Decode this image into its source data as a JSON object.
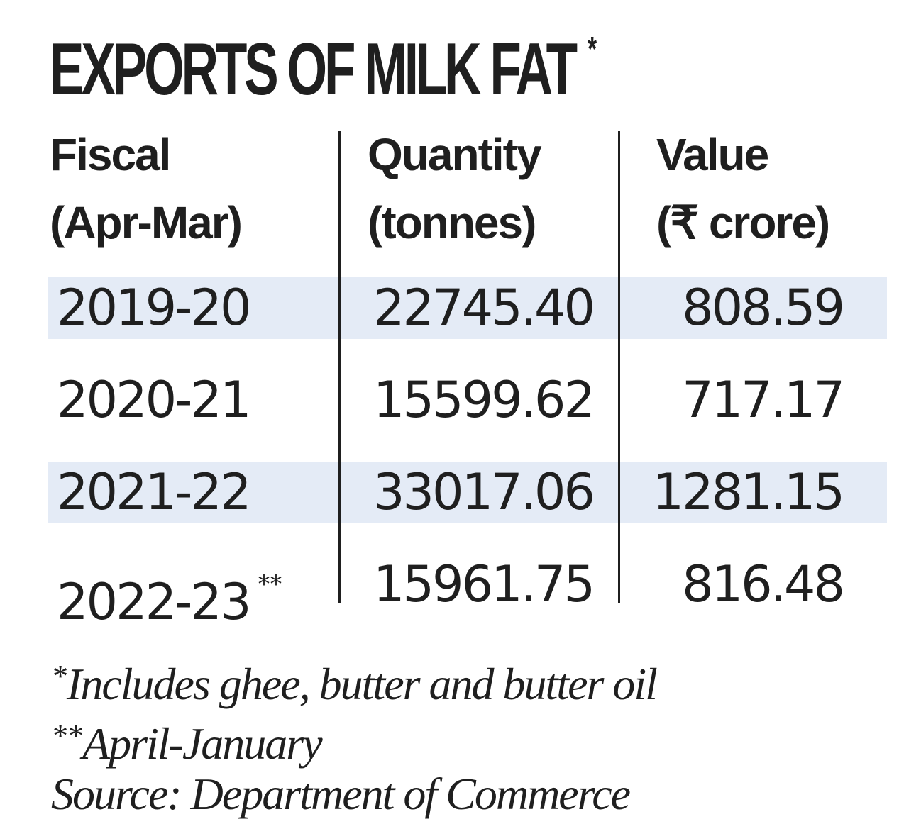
{
  "chart_data": {
    "type": "table",
    "title": "EXPORTS OF MILK FAT",
    "title_marker": "*",
    "columns": [
      {
        "line1": "Fiscal",
        "line2": "(Apr-Mar)"
      },
      {
        "line1": "Quantity",
        "line2": "(tonnes)"
      },
      {
        "line1": "Value",
        "line2": "(₹ crore)"
      }
    ],
    "rows": [
      {
        "fiscal": "2019-20",
        "marker": "",
        "quantity": "22745.40",
        "value": "808.59"
      },
      {
        "fiscal": "2020-21",
        "marker": "",
        "quantity": "15599.62",
        "value": "717.17"
      },
      {
        "fiscal": "2021-22",
        "marker": "",
        "quantity": "33017.06",
        "value": "1281.15"
      },
      {
        "fiscal": "2022-23",
        "marker": "**",
        "quantity": "15961.75",
        "value": "816.48"
      }
    ],
    "footnotes": [
      {
        "marker": "*",
        "text": "Includes ghee, butter and butter oil"
      },
      {
        "marker": "**",
        "text": "April-January"
      },
      {
        "marker": "",
        "text": "Source: Department of Commerce"
      }
    ]
  },
  "colors": {
    "text": "#1f1f1f",
    "band": "#e4ebf6",
    "background": "#ffffff"
  }
}
